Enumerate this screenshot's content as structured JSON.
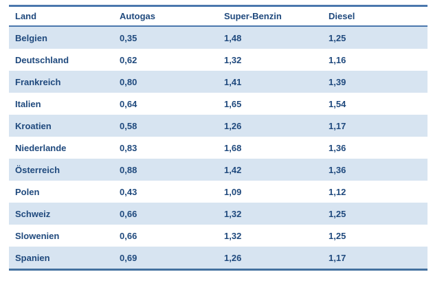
{
  "chart_data": {
    "type": "table",
    "title": "",
    "columns": [
      "Land",
      "Autogas",
      "Super-Benzin",
      "Diesel"
    ],
    "rows": [
      [
        "Belgien",
        "0,35",
        "1,48",
        "1,25"
      ],
      [
        "Deutschland",
        "0,62",
        "1,32",
        "1,16"
      ],
      [
        "Frankreich",
        "0,80",
        "1,41",
        "1,39"
      ],
      [
        "Italien",
        "0,64",
        "1,65",
        "1,54"
      ],
      [
        "Kroatien",
        "0,58",
        "1,26",
        "1,17"
      ],
      [
        "Niederlande",
        "0,83",
        "1,68",
        "1,36"
      ],
      [
        "Österreich",
        "0,88",
        "1,42",
        "1,36"
      ],
      [
        "Polen",
        "0,43",
        "1,09",
        "1,12"
      ],
      [
        "Schweiz",
        "0,66",
        "1,32",
        "1,25"
      ],
      [
        "Slowenien",
        "0,66",
        "1,32",
        "1,25"
      ],
      [
        "Spanien",
        "0,69",
        "1,26",
        "1,17"
      ]
    ],
    "layout_hints": {
      "banding": "odd rows shaded light blue, even rows white",
      "borders": "horizontal rules only: above header, below header, below last row"
    }
  },
  "colors": {
    "text": "#1F497D",
    "row_alt_bg": "#D7E4F1",
    "row_plain_bg": "#FFFFFF",
    "border": "#4A77AD",
    "page_bg": "#FFFFFF"
  }
}
